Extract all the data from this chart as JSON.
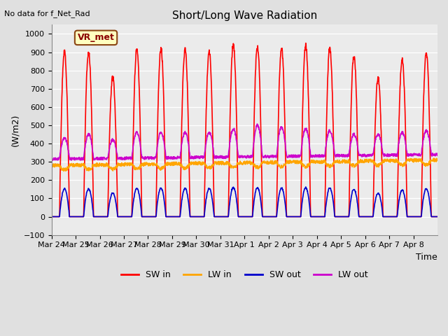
{
  "title": "Short/Long Wave Radiation",
  "xlabel": "Time",
  "ylabel": "(W/m2)",
  "ylim": [
    -100,
    1050
  ],
  "yticks": [
    -100,
    0,
    100,
    200,
    300,
    400,
    500,
    600,
    700,
    800,
    900,
    1000
  ],
  "note": "No data for f_Net_Rad",
  "legend_label": "VR_met",
  "x_tick_labels": [
    "Mar 24",
    "Mar 25",
    "Mar 26",
    "Mar 27",
    "Mar 28",
    "Mar 29",
    "Mar 30",
    "Mar 31",
    "Apr 1",
    "Apr 2",
    "Apr 3",
    "Apr 4",
    "Apr 5",
    "Apr 6",
    "Apr 7",
    "Apr 8"
  ],
  "colors": {
    "SW_in": "#FF0000",
    "LW_in": "#FFA500",
    "SW_out": "#0000CC",
    "LW_out": "#CC00CC",
    "background": "#E0E0E0",
    "plot_bg": "#EBEBEB"
  },
  "sw_peaks": [
    900,
    900,
    760,
    920,
    920,
    910,
    905,
    940,
    930,
    920,
    935,
    920,
    880,
    760,
    860,
    900
  ],
  "lw_out_peaks": [
    430,
    450,
    420,
    460,
    460,
    460,
    460,
    480,
    500,
    490,
    480,
    470,
    450,
    450,
    460,
    470
  ],
  "n_days": 16,
  "line_width": 1.2
}
